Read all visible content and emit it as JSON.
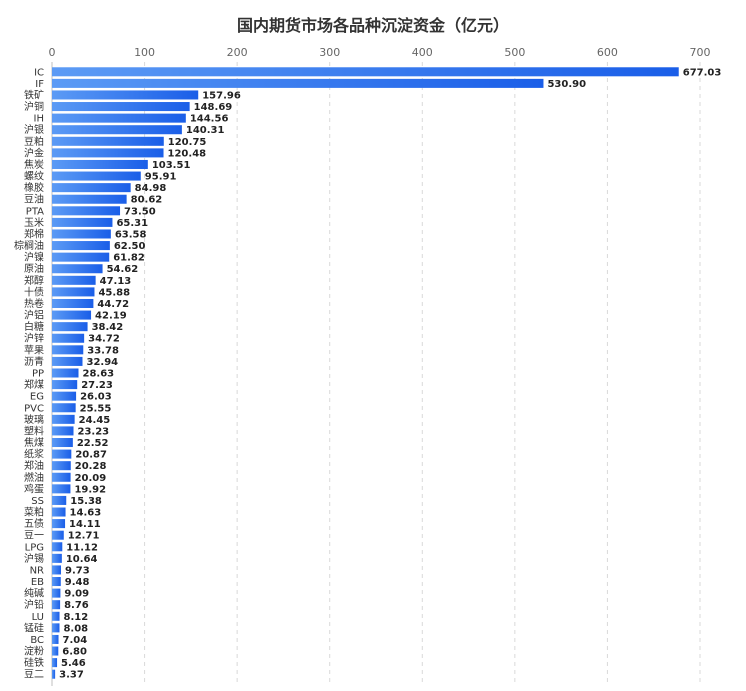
{
  "title": "国内期货市场各品种沉淀资金（亿元）",
  "colors": {
    "bar_start": "#5c9bf5",
    "bar_end": "#1a5ee8",
    "grid": "#d9d9d9",
    "axis": "#bfbfbf"
  },
  "chart_data": {
    "type": "bar",
    "orientation": "horizontal",
    "title": "国内期货市场各品种沉淀资金（亿元）",
    "xlim": [
      0,
      700
    ],
    "xticks": [
      0,
      100,
      200,
      300,
      400,
      500,
      600,
      700
    ],
    "x_axis_position": "top",
    "grid": "vertical-dashed",
    "categories": [
      "IC",
      "IF",
      "铁矿",
      "沪铜",
      "IH",
      "沪银",
      "豆粕",
      "沪金",
      "焦炭",
      "螺纹",
      "橡胶",
      "豆油",
      "PTA",
      "玉米",
      "郑棉",
      "棕榈油",
      "沪镍",
      "原油",
      "郑醇",
      "十债",
      "热卷",
      "沪铝",
      "白糖",
      "沪锌",
      "苹果",
      "沥青",
      "PP",
      "郑煤",
      "EG",
      "PVC",
      "玻璃",
      "塑料",
      "焦煤",
      "纸浆",
      "郑油",
      "燃油",
      "鸡蛋",
      "SS",
      "菜粕",
      "五债",
      "豆一",
      "LPG",
      "沪锡",
      "NR",
      "EB",
      "纯碱",
      "沪铅",
      "LU",
      "锰硅",
      "BC",
      "淀粉",
      "硅铁",
      "豆二"
    ],
    "values": [
      677.03,
      530.9,
      157.96,
      148.69,
      144.56,
      140.31,
      120.75,
      120.48,
      103.51,
      95.91,
      84.98,
      80.62,
      73.5,
      65.31,
      63.58,
      62.5,
      61.82,
      54.62,
      47.13,
      45.88,
      44.72,
      42.19,
      38.42,
      34.72,
      33.78,
      32.94,
      28.63,
      27.23,
      26.03,
      25.55,
      24.45,
      23.23,
      22.52,
      20.87,
      20.28,
      20.09,
      19.92,
      15.38,
      14.63,
      14.11,
      12.71,
      11.12,
      10.64,
      9.73,
      9.48,
      9.09,
      8.76,
      8.12,
      8.08,
      7.04,
      6.8,
      5.46,
      3.37
    ],
    "value_labels": [
      "677.03",
      "530.90",
      "157.96",
      "148.69",
      "144.56",
      "140.31",
      "120.75",
      "120.48",
      "103.51",
      "95.91",
      "84.98",
      "80.62",
      "73.50",
      "65.31",
      "63.58",
      "62.50",
      "61.82",
      "54.62",
      "47.13",
      "45.88",
      "44.72",
      "42.19",
      "38.42",
      "34.72",
      "33.78",
      "32.94",
      "28.63",
      "27.23",
      "26.03",
      "25.55",
      "24.45",
      "23.23",
      "22.52",
      "20.87",
      "20.28",
      "20.09",
      "19.92",
      "15.38",
      "14.63",
      "14.11",
      "12.71",
      "11.12",
      "10.64",
      "9.73",
      "9.48",
      "9.09",
      "8.76",
      "8.12",
      "8.08",
      "7.04",
      "6.80",
      "5.46",
      "3.37"
    ]
  }
}
